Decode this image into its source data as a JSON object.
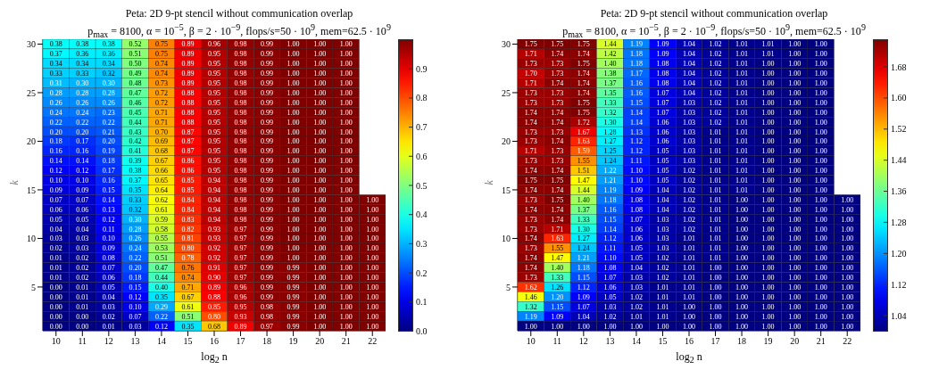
{
  "chart_data": [
    {
      "type": "heatmap",
      "title": "Peta: 2D 9-pt stencil without communication overlap",
      "subtitle": "p$_{max}$ = 8100, α = 10$^{−5}$, β = 2 · 10$^{−9}$, flops/s=50 · 10$^{9}$, mem=62.5 · 10$^{9}$",
      "xlabel": "log$_{2}$ n",
      "ylabel": "k",
      "categories": [
        "10",
        "11",
        "12",
        "13",
        "14",
        "15",
        "16",
        "17",
        "18",
        "19",
        "20",
        "21",
        "22"
      ],
      "y_categories": [
        "30",
        null,
        null,
        null,
        null,
        "25",
        null,
        null,
        null,
        null,
        "20",
        null,
        null,
        null,
        null,
        "15",
        null,
        null,
        null,
        null,
        "10",
        null,
        null,
        null,
        null,
        "5",
        null,
        null,
        null,
        null
      ],
      "cells": [
        [
          0.38,
          0.38,
          0.38,
          0.52,
          0.75,
          0.89,
          0.96,
          0.98,
          0.99,
          1,
          1,
          1,
          null
        ],
        [
          0.37,
          0.36,
          0.36,
          0.51,
          0.75,
          0.89,
          0.95,
          0.98,
          0.99,
          1,
          1,
          1,
          null
        ],
        [
          0.34,
          0.34,
          0.34,
          0.5,
          0.74,
          0.89,
          0.95,
          0.98,
          0.99,
          1,
          1,
          1,
          null
        ],
        [
          0.33,
          0.33,
          0.32,
          0.49,
          0.74,
          0.89,
          0.95,
          0.98,
          0.99,
          1,
          1,
          1,
          null
        ],
        [
          0.31,
          0.3,
          0.3,
          0.48,
          0.73,
          0.89,
          0.95,
          0.98,
          0.99,
          1,
          1,
          1,
          null
        ],
        [
          0.28,
          0.28,
          0.28,
          0.47,
          0.72,
          0.88,
          0.95,
          0.98,
          0.99,
          1,
          1,
          1,
          null
        ],
        [
          0.26,
          0.26,
          0.26,
          0.46,
          0.72,
          0.88,
          0.95,
          0.98,
          0.99,
          1,
          1,
          1,
          null
        ],
        [
          0.24,
          0.24,
          0.23,
          0.45,
          0.71,
          0.88,
          0.95,
          0.98,
          0.99,
          1,
          1,
          1,
          null
        ],
        [
          0.22,
          0.22,
          0.22,
          0.44,
          0.71,
          0.88,
          0.95,
          0.98,
          0.99,
          1,
          1,
          1,
          null
        ],
        [
          0.2,
          0.2,
          0.21,
          0.43,
          0.7,
          0.87,
          0.95,
          0.98,
          0.99,
          1,
          1,
          1,
          null
        ],
        [
          0.18,
          0.17,
          0.2,
          0.42,
          0.69,
          0.87,
          0.95,
          0.98,
          0.99,
          1,
          1,
          1,
          null
        ],
        [
          0.16,
          0.16,
          0.19,
          0.41,
          0.68,
          0.87,
          0.95,
          0.98,
          0.99,
          1,
          1,
          1,
          null
        ],
        [
          0.14,
          0.14,
          0.18,
          0.39,
          0.67,
          0.86,
          0.95,
          0.98,
          0.99,
          1,
          1,
          1,
          null
        ],
        [
          0.12,
          0.12,
          0.17,
          0.38,
          0.66,
          0.86,
          0.95,
          0.98,
          0.99,
          1,
          1,
          1,
          null
        ],
        [
          0.1,
          0.1,
          0.16,
          0.37,
          0.65,
          0.85,
          0.94,
          0.98,
          0.99,
          1,
          1,
          1,
          null
        ],
        [
          0.09,
          0.09,
          0.15,
          0.35,
          0.64,
          0.85,
          0.94,
          0.98,
          0.99,
          1,
          1,
          1,
          null
        ],
        [
          0.07,
          0.07,
          0.14,
          0.33,
          0.62,
          0.84,
          0.94,
          0.98,
          0.99,
          1,
          1,
          1,
          1
        ],
        [
          0.06,
          0.06,
          0.13,
          0.32,
          0.61,
          0.84,
          0.94,
          0.98,
          0.99,
          1,
          1,
          1,
          1
        ],
        [
          0.05,
          0.05,
          0.12,
          0.3,
          0.59,
          0.83,
          0.94,
          0.98,
          0.99,
          1,
          1,
          1,
          1
        ],
        [
          0.04,
          0.04,
          0.11,
          0.28,
          0.58,
          0.82,
          0.93,
          0.97,
          0.99,
          1,
          1,
          1,
          1
        ],
        [
          0.03,
          0.03,
          0.1,
          0.26,
          0.55,
          0.81,
          0.93,
          0.97,
          0.99,
          1,
          1,
          1,
          1
        ],
        [
          0.02,
          0.03,
          0.09,
          0.24,
          0.53,
          0.8,
          0.92,
          0.97,
          0.99,
          1,
          1,
          1,
          1
        ],
        [
          0.01,
          0.02,
          0.08,
          0.22,
          0.51,
          0.78,
          0.92,
          0.97,
          0.99,
          1,
          1,
          1,
          1
        ],
        [
          0.01,
          0.02,
          0.07,
          0.2,
          0.47,
          0.76,
          0.91,
          0.97,
          0.99,
          0.99,
          1,
          1,
          1
        ],
        [
          0.01,
          0.02,
          0.06,
          0.18,
          0.44,
          0.74,
          0.9,
          0.97,
          0.99,
          0.99,
          1,
          1,
          1
        ],
        [
          0.0,
          0.01,
          0.05,
          0.15,
          0.4,
          0.71,
          0.89,
          0.96,
          0.99,
          0.99,
          1,
          1,
          1
        ],
        [
          0.0,
          0.01,
          0.04,
          0.12,
          0.35,
          0.67,
          0.88,
          0.96,
          0.99,
          0.99,
          1,
          1,
          1
        ],
        [
          0.0,
          0.01,
          0.03,
          0.1,
          0.29,
          0.61,
          0.85,
          0.95,
          0.98,
          0.99,
          1,
          1,
          1
        ],
        [
          0.0,
          0.0,
          0.02,
          0.07,
          0.22,
          0.51,
          0.8,
          0.93,
          0.98,
          0.99,
          1,
          1,
          1
        ],
        [
          0.0,
          0.0,
          0.01,
          0.03,
          0.12,
          0.35,
          0.68,
          0.89,
          0.97,
          0.99,
          1,
          1,
          1
        ]
      ],
      "cell_labels": [
        [
          "0.38",
          "0.38",
          "0.38",
          "0.52",
          "0.75",
          "0.89",
          "0.96",
          "0.98",
          "0.99",
          "1.00",
          "1.00",
          "1.00",
          null
        ],
        [
          "0.37",
          "0.36",
          "0.36",
          "0.51",
          "0.75",
          "0.89",
          "0.95",
          "0.98",
          "0.99",
          "1.00",
          "1.00",
          "1.00",
          null
        ],
        [
          "0.34",
          "0.34",
          "0.34",
          "0.50",
          "0.74",
          "0.89",
          "0.95",
          "0.98",
          "0.99",
          "1.00",
          "1.00",
          "1.00",
          null
        ],
        [
          "0.33",
          "0.33",
          "0.32",
          "0.49",
          "0.74",
          "0.89",
          "0.95",
          "0.98",
          "0.99",
          "1.00",
          "1.00",
          "1.00",
          null
        ],
        [
          "0.31",
          "0.30",
          "0.30",
          "0.48",
          "0.73",
          "0.89",
          "0.95",
          "0.98",
          "0.99",
          "1.00",
          "1.00",
          "1.00",
          null
        ],
        [
          "0.28",
          "0.28",
          "0.28",
          "0.47",
          "0.72",
          "0.88",
          "0.95",
          "0.98",
          "0.99",
          "1.00",
          "1.00",
          "1.00",
          null
        ],
        [
          "0.26",
          "0.26",
          "0.26",
          "0.46",
          "0.72",
          "0.88",
          "0.95",
          "0.98",
          "0.99",
          "1.00",
          "1.00",
          "1.00",
          null
        ],
        [
          "0.24",
          "0.24",
          "0.23",
          "0.45",
          "0.71",
          "0.88",
          "0.95",
          "0.98",
          "0.99",
          "1.00",
          "1.00",
          "1.00",
          null
        ],
        [
          "0.22",
          "0.22",
          "0.22",
          "0.44",
          "0.71",
          "0.88",
          "0.95",
          "0.98",
          "0.99",
          "1.00",
          "1.00",
          "1.00",
          null
        ],
        [
          "0.20",
          "0.20",
          "0.21",
          "0.43",
          "0.70",
          "0.87",
          "0.95",
          "0.98",
          "0.99",
          "1.00",
          "1.00",
          "1.00",
          null
        ],
        [
          "0.18",
          "0.17",
          "0.20",
          "0.42",
          "0.69",
          "0.87",
          "0.95",
          "0.98",
          "0.99",
          "1.00",
          "1.00",
          "1.00",
          null
        ],
        [
          "0.16",
          "0.16",
          "0.19",
          "0.41",
          "0.68",
          "0.87",
          "0.95",
          "0.98",
          "0.99",
          "1.00",
          "1.00",
          "1.00",
          null
        ],
        [
          "0.14",
          "0.14",
          "0.18",
          "0.39",
          "0.67",
          "0.86",
          "0.95",
          "0.98",
          "0.99",
          "1.00",
          "1.00",
          "1.00",
          null
        ],
        [
          "0.12",
          "0.12",
          "0.17",
          "0.38",
          "0.66",
          "0.86",
          "0.95",
          "0.98",
          "0.99",
          "1.00",
          "1.00",
          "1.00",
          null
        ],
        [
          "0.10",
          "0.10",
          "0.16",
          "0.37",
          "0.65",
          "0.85",
          "0.94",
          "0.98",
          "0.99",
          "1.00",
          "1.00",
          "1.00",
          null
        ],
        [
          "0.09",
          "0.09",
          "0.15",
          "0.35",
          "0.64",
          "0.85",
          "0.94",
          "0.98",
          "0.99",
          "1.00",
          "1.00",
          "1.00",
          null
        ],
        [
          "0.07",
          "0.07",
          "0.14",
          "0.33",
          "0.62",
          "0.84",
          "0.94",
          "0.98",
          "0.99",
          "1.00",
          "1.00",
          "1.00",
          "1.00"
        ],
        [
          "0.06",
          "0.06",
          "0.13",
          "0.32",
          "0.61",
          "0.84",
          "0.94",
          "0.98",
          "0.99",
          "1.00",
          "1.00",
          "1.00",
          "1.00"
        ],
        [
          "0.05",
          "0.05",
          "0.12",
          "0.30",
          "0.59",
          "0.83",
          "0.94",
          "0.98",
          "0.99",
          "1.00",
          "1.00",
          "1.00",
          "1.00"
        ],
        [
          "0.04",
          "0.04",
          "0.11",
          "0.28",
          "0.58",
          "0.82",
          "0.93",
          "0.97",
          "0.99",
          "1.00",
          "1.00",
          "1.00",
          "1.00"
        ],
        [
          "0.03",
          "0.03",
          "0.10",
          "0.26",
          "0.55",
          "0.81",
          "0.93",
          "0.97",
          "0.99",
          "1.00",
          "1.00",
          "1.00",
          "1.00"
        ],
        [
          "0.02",
          "0.03",
          "0.09",
          "0.24",
          "0.53",
          "0.80",
          "0.92",
          "0.97",
          "0.99",
          "1.00",
          "1.00",
          "1.00",
          "1.00"
        ],
        [
          "0.01",
          "0.02",
          "0.08",
          "0.22",
          "0.51",
          "0.78",
          "0.92",
          "0.97",
          "0.99",
          "1.00",
          "1.00",
          "1.00",
          "1.00"
        ],
        [
          "0.01",
          "0.02",
          "0.07",
          "0.20",
          "0.47",
          "0.76",
          "0.91",
          "0.97",
          "0.99",
          "0.99",
          "1.00",
          "1.00",
          "1.00"
        ],
        [
          "0.01",
          "0.02",
          "0.06",
          "0.18",
          "0.44",
          "0.74",
          "0.90",
          "0.97",
          "0.99",
          "0.99",
          "1.00",
          "1.00",
          "1.00"
        ],
        [
          "0.00",
          "0.01",
          "0.05",
          "0.15",
          "0.40",
          "0.71",
          "0.89",
          "0.96",
          "0.99",
          "0.99",
          "1.00",
          "1.00",
          "1.00"
        ],
        [
          "0.00",
          "0.01",
          "0.04",
          "0.12",
          "0.35",
          "0.67",
          "0.88",
          "0.96",
          "0.99",
          "0.99",
          "1.00",
          "1.00",
          "1.00"
        ],
        [
          "0.00",
          "0.01",
          "0.03",
          "0.10",
          "0.29",
          "0.61",
          "0.85",
          "0.95",
          "0.98",
          "0.99",
          "1.00",
          "1.00",
          "1.00"
        ],
        [
          "0.00",
          "0.00",
          "0.02",
          "0.07",
          "0.22",
          "0.51",
          "0.80",
          "0.93",
          "0.98",
          "0.99",
          "1.00",
          "1.00",
          "1.00"
        ],
        [
          "0.00",
          "0.00",
          "0.01",
          "0.03",
          "0.12",
          "0.35",
          "0.68",
          "0.89",
          "0.97",
          "0.99",
          "1.00",
          "1.00",
          "1.00"
        ]
      ],
      "data_labels": true,
      "clim": [
        0,
        1
      ],
      "cticks": [
        {
          "value": 0,
          "label": "0.0"
        },
        {
          "value": 0.1,
          "label": "0.1"
        },
        {
          "value": 0.2,
          "label": "0.2"
        },
        {
          "value": 0.3,
          "label": "0.3"
        },
        {
          "value": 0.4,
          "label": "0.4"
        },
        {
          "value": 0.5,
          "label": "0.5"
        },
        {
          "value": 0.6,
          "label": "0.6"
        },
        {
          "value": 0.7,
          "label": "0.7"
        },
        {
          "value": 0.8,
          "label": "0.8"
        },
        {
          "value": 0.9,
          "label": "0.9"
        }
      ]
    },
    {
      "type": "heatmap",
      "title": "Peta: 2D 9-pt stencil without communication overlap",
      "subtitle": "p$_{max}$ = 8100, α = 10$^{−5}$, β = 2 · 10$^{−9}$, flops/s=50 · 10$^{9}$, mem=62.5 · 10$^{9}$",
      "xlabel": "log$_{2}$ n",
      "ylabel": "k",
      "categories": [
        "10",
        "11",
        "12",
        "13",
        "14",
        "15",
        "16",
        "17",
        "18",
        "19",
        "20",
        "21",
        "22"
      ],
      "y_categories": [
        "30",
        null,
        null,
        null,
        null,
        "25",
        null,
        null,
        null,
        null,
        "20",
        null,
        null,
        null,
        null,
        "15",
        null,
        null,
        null,
        null,
        "10",
        null,
        null,
        null,
        null,
        "5",
        null,
        null,
        null,
        null
      ],
      "cells": [
        [
          1.75,
          1.75,
          1.75,
          1.44,
          1.19,
          1.09,
          1.04,
          1.02,
          1.01,
          1.01,
          1.0,
          1.0,
          null
        ],
        [
          1.71,
          1.74,
          1.74,
          1.42,
          1.18,
          1.09,
          1.04,
          1.02,
          1.01,
          1.01,
          1.0,
          1.0,
          null
        ],
        [
          1.73,
          1.73,
          1.75,
          1.4,
          1.18,
          1.08,
          1.04,
          1.02,
          1.01,
          1.0,
          1.0,
          1.0,
          null
        ],
        [
          1.7,
          1.73,
          1.74,
          1.38,
          1.17,
          1.08,
          1.04,
          1.02,
          1.01,
          1.0,
          1.0,
          1.0,
          null
        ],
        [
          1.71,
          1.74,
          1.74,
          1.37,
          1.16,
          1.08,
          1.04,
          1.02,
          1.01,
          1.0,
          1.0,
          1.0,
          null
        ],
        [
          1.73,
          1.73,
          1.74,
          1.35,
          1.16,
          1.07,
          1.04,
          1.02,
          1.01,
          1.0,
          1.0,
          1.0,
          null
        ],
        [
          1.73,
          1.73,
          1.75,
          1.33,
          1.15,
          1.07,
          1.03,
          1.02,
          1.01,
          1.0,
          1.0,
          1.0,
          null
        ],
        [
          1.74,
          1.74,
          1.75,
          1.32,
          1.14,
          1.07,
          1.03,
          1.02,
          1.01,
          1.0,
          1.0,
          1.0,
          null
        ],
        [
          1.74,
          1.74,
          1.72,
          1.3,
          1.14,
          1.06,
          1.03,
          1.02,
          1.01,
          1.0,
          1.0,
          1.0,
          null
        ],
        [
          1.73,
          1.73,
          1.67,
          1.28,
          1.13,
          1.06,
          1.03,
          1.01,
          1.01,
          1.0,
          1.0,
          1.0,
          null
        ],
        [
          1.73,
          1.74,
          1.63,
          1.27,
          1.12,
          1.06,
          1.03,
          1.01,
          1.01,
          1.0,
          1.0,
          1.0,
          null
        ],
        [
          1.71,
          1.73,
          1.59,
          1.25,
          1.12,
          1.05,
          1.03,
          1.01,
          1.01,
          1.0,
          1.0,
          1.0,
          null
        ],
        [
          1.73,
          1.73,
          1.55,
          1.24,
          1.11,
          1.05,
          1.03,
          1.01,
          1.01,
          1.0,
          1.0,
          1.0,
          null
        ],
        [
          1.74,
          1.74,
          1.51,
          1.22,
          1.1,
          1.05,
          1.02,
          1.01,
          1.01,
          1.0,
          1.0,
          1.0,
          null
        ],
        [
          1.75,
          1.75,
          1.47,
          1.21,
          1.1,
          1.05,
          1.02,
          1.01,
          1.01,
          1.0,
          1.0,
          1.0,
          null
        ],
        [
          1.74,
          1.74,
          1.44,
          1.19,
          1.09,
          1.04,
          1.02,
          1.01,
          1.01,
          1.0,
          1.0,
          1.0,
          null
        ],
        [
          1.73,
          1.75,
          1.4,
          1.18,
          1.08,
          1.04,
          1.02,
          1.01,
          1.0,
          1.0,
          1.0,
          1.0,
          1.0
        ],
        [
          1.74,
          1.74,
          1.37,
          1.16,
          1.08,
          1.04,
          1.02,
          1.01,
          1.0,
          1.0,
          1.0,
          1.0,
          1.0
        ],
        [
          1.73,
          1.74,
          1.33,
          1.15,
          1.07,
          1.03,
          1.02,
          1.01,
          1.0,
          1.0,
          1.0,
          1.0,
          1.0
        ],
        [
          1.73,
          1.71,
          1.3,
          1.14,
          1.06,
          1.03,
          1.02,
          1.01,
          1.0,
          1.0,
          1.0,
          1.0,
          1.0
        ],
        [
          1.74,
          1.63,
          1.27,
          1.12,
          1.06,
          1.03,
          1.01,
          1.01,
          1.0,
          1.0,
          1.0,
          1.0,
          1.0
        ],
        [
          1.73,
          1.55,
          1.24,
          1.11,
          1.05,
          1.03,
          1.01,
          1.01,
          1.0,
          1.0,
          1.0,
          1.0,
          1.0
        ],
        [
          1.74,
          1.47,
          1.21,
          1.1,
          1.05,
          1.02,
          1.01,
          1.01,
          1.0,
          1.0,
          1.0,
          1.0,
          1.0
        ],
        [
          1.74,
          1.4,
          1.18,
          1.08,
          1.04,
          1.02,
          1.01,
          1.0,
          1.0,
          1.0,
          1.0,
          1.0,
          1.0
        ],
        [
          1.73,
          1.33,
          1.15,
          1.07,
          1.03,
          1.02,
          1.01,
          1.0,
          1.0,
          1.0,
          1.0,
          1.0,
          1.0
        ],
        [
          1.62,
          1.26,
          1.12,
          1.06,
          1.03,
          1.01,
          1.01,
          1.0,
          1.0,
          1.0,
          1.0,
          1.0,
          1.0
        ],
        [
          1.46,
          1.2,
          1.09,
          1.05,
          1.02,
          1.01,
          1.01,
          1.0,
          1.0,
          1.0,
          1.0,
          1.0,
          1.0
        ],
        [
          1.32,
          1.15,
          1.07,
          1.03,
          1.02,
          1.01,
          1.0,
          1.0,
          1.0,
          1.0,
          1.0,
          1.0,
          1.0
        ],
        [
          1.19,
          1.09,
          1.04,
          1.02,
          1.01,
          1.01,
          1.0,
          1.0,
          1.0,
          1.0,
          1.0,
          1.0,
          1.0
        ],
        [
          1.0,
          1.0,
          1.0,
          1.0,
          1.0,
          1.0,
          1.0,
          1.0,
          1.0,
          1.0,
          1.0,
          1.0,
          1.0
        ]
      ],
      "cell_labels": [
        [
          "1.75",
          "1.75",
          "1.75",
          "1.44",
          "1.19",
          "1.09",
          "1.04",
          "1.02",
          "1.01",
          "1.01",
          "1.00",
          "1.00",
          null
        ],
        [
          "1.71",
          "1.74",
          "1.74",
          "1.42",
          "1.18",
          "1.09",
          "1.04",
          "1.02",
          "1.01",
          "1.01",
          "1.00",
          "1.00",
          null
        ],
        [
          "1.73",
          "1.73",
          "1.75",
          "1.40",
          "1.18",
          "1.08",
          "1.04",
          "1.02",
          "1.01",
          "1.00",
          "1.00",
          "1.00",
          null
        ],
        [
          "1.70",
          "1.73",
          "1.74",
          "1.38",
          "1.17",
          "1.08",
          "1.04",
          "1.02",
          "1.01",
          "1.00",
          "1.00",
          "1.00",
          null
        ],
        [
          "1.71",
          "1.74",
          "1.74",
          "1.37",
          "1.16",
          "1.08",
          "1.04",
          "1.02",
          "1.01",
          "1.00",
          "1.00",
          "1.00",
          null
        ],
        [
          "1.73",
          "1.73",
          "1.74",
          "1.35",
          "1.16",
          "1.07",
          "1.04",
          "1.02",
          "1.01",
          "1.00",
          "1.00",
          "1.00",
          null
        ],
        [
          "1.73",
          "1.73",
          "1.75",
          "1.33",
          "1.15",
          "1.07",
          "1.03",
          "1.02",
          "1.01",
          "1.00",
          "1.00",
          "1.00",
          null
        ],
        [
          "1.74",
          "1.74",
          "1.75",
          "1.32",
          "1.14",
          "1.07",
          "1.03",
          "1.02",
          "1.01",
          "1.00",
          "1.00",
          "1.00",
          null
        ],
        [
          "1.74",
          "1.74",
          "1.72",
          "1.30",
          "1.14",
          "1.06",
          "1.03",
          "1.02",
          "1.01",
          "1.00",
          "1.00",
          "1.00",
          null
        ],
        [
          "1.73",
          "1.73",
          "1.67",
          "1.28",
          "1.13",
          "1.06",
          "1.03",
          "1.01",
          "1.01",
          "1.00",
          "1.00",
          "1.00",
          null
        ],
        [
          "1.73",
          "1.74",
          "1.63",
          "1.27",
          "1.12",
          "1.06",
          "1.03",
          "1.01",
          "1.01",
          "1.00",
          "1.00",
          "1.00",
          null
        ],
        [
          "1.71",
          "1.73",
          "1.59",
          "1.25",
          "1.12",
          "1.05",
          "1.03",
          "1.01",
          "1.01",
          "1.00",
          "1.00",
          "1.00",
          null
        ],
        [
          "1.73",
          "1.73",
          "1.55",
          "1.24",
          "1.11",
          "1.05",
          "1.03",
          "1.01",
          "1.01",
          "1.00",
          "1.00",
          "1.00",
          null
        ],
        [
          "1.74",
          "1.74",
          "1.51",
          "1.22",
          "1.10",
          "1.05",
          "1.02",
          "1.01",
          "1.01",
          "1.00",
          "1.00",
          "1.00",
          null
        ],
        [
          "1.75",
          "1.75",
          "1.47",
          "1.21",
          "1.10",
          "1.05",
          "1.02",
          "1.01",
          "1.01",
          "1.00",
          "1.00",
          "1.00",
          null
        ],
        [
          "1.74",
          "1.74",
          "1.44",
          "1.19",
          "1.09",
          "1.04",
          "1.02",
          "1.01",
          "1.01",
          "1.00",
          "1.00",
          "1.00",
          null
        ],
        [
          "1.73",
          "1.75",
          "1.40",
          "1.18",
          "1.08",
          "1.04",
          "1.02",
          "1.01",
          "1.00",
          "1.00",
          "1.00",
          "1.00",
          "1.00"
        ],
        [
          "1.74",
          "1.74",
          "1.37",
          "1.16",
          "1.08",
          "1.04",
          "1.02",
          "1.01",
          "1.00",
          "1.00",
          "1.00",
          "1.00",
          "1.00"
        ],
        [
          "1.73",
          "1.74",
          "1.33",
          "1.15",
          "1.07",
          "1.03",
          "1.02",
          "1.01",
          "1.00",
          "1.00",
          "1.00",
          "1.00",
          "1.00"
        ],
        [
          "1.73",
          "1.71",
          "1.30",
          "1.14",
          "1.06",
          "1.03",
          "1.02",
          "1.01",
          "1.00",
          "1.00",
          "1.00",
          "1.00",
          "1.00"
        ],
        [
          "1.74",
          "1.63",
          "1.27",
          "1.12",
          "1.06",
          "1.03",
          "1.01",
          "1.01",
          "1.00",
          "1.00",
          "1.00",
          "1.00",
          "1.00"
        ],
        [
          "1.73",
          "1.55",
          "1.24",
          "1.11",
          "1.05",
          "1.03",
          "1.01",
          "1.01",
          "1.00",
          "1.00",
          "1.00",
          "1.00",
          "1.00"
        ],
        [
          "1.74",
          "1.47",
          "1.21",
          "1.10",
          "1.05",
          "1.02",
          "1.01",
          "1.01",
          "1.00",
          "1.00",
          "1.00",
          "1.00",
          "1.00"
        ],
        [
          "1.74",
          "1.40",
          "1.18",
          "1.08",
          "1.04",
          "1.02",
          "1.01",
          "1.00",
          "1.00",
          "1.00",
          "1.00",
          "1.00",
          "1.00"
        ],
        [
          "1.73",
          "1.33",
          "1.15",
          "1.07",
          "1.03",
          "1.02",
          "1.01",
          "1.00",
          "1.00",
          "1.00",
          "1.00",
          "1.00",
          "1.00"
        ],
        [
          "1.62",
          "1.26",
          "1.12",
          "1.06",
          "1.03",
          "1.01",
          "1.01",
          "1.00",
          "1.00",
          "1.00",
          "1.00",
          "1.00",
          "1.00"
        ],
        [
          "1.46",
          "1.20",
          "1.09",
          "1.05",
          "1.02",
          "1.01",
          "1.01",
          "1.00",
          "1.00",
          "1.00",
          "1.00",
          "1.00",
          "1.00"
        ],
        [
          "1.32",
          "1.15",
          "1.07",
          "1.03",
          "1.02",
          "1.01",
          "1.00",
          "1.00",
          "1.00",
          "1.00",
          "1.00",
          "1.00",
          "1.00"
        ],
        [
          "1.19",
          "1.09",
          "1.04",
          "1.02",
          "1.01",
          "1.01",
          "1.00",
          "1.00",
          "1.00",
          "1.00",
          "1.00",
          "1.00",
          "1.00"
        ],
        [
          "1.00",
          "1.00",
          "1.00",
          "1.00",
          "1.00",
          "1.00",
          "1.00",
          "1.00",
          "1.00",
          "1.00",
          "1.00",
          "1.00",
          "1.00"
        ]
      ],
      "data_labels": true,
      "clim": [
        1,
        1.75
      ],
      "cticks": [
        1.04,
        1.12,
        {
          "value": 1.2,
          "label": "1.20"
        },
        1.28,
        1.36,
        1.44,
        1.52,
        {
          "value": 1.6,
          "label": "1.60"
        },
        1.68
      ]
    }
  ]
}
